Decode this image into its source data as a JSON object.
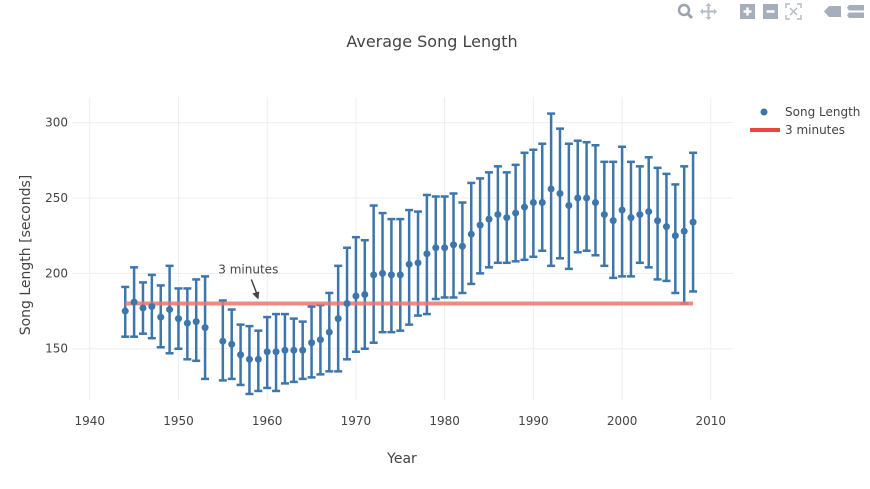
{
  "modebar": {
    "icons": [
      "zoom-icon",
      "pan-icon",
      "zoom-in-icon",
      "zoom-out-icon",
      "autoscale-icon",
      "hover-closest-icon",
      "hover-compare-icon"
    ]
  },
  "chart_data": {
    "type": "scatter",
    "title": "Average Song Length",
    "xlabel": "Year",
    "ylabel": "Song Length [seconds]",
    "xlim": [
      1938,
      2012.5
    ],
    "ylim": [
      116,
      317
    ],
    "xticks": [
      1940,
      1950,
      1960,
      1970,
      1980,
      1990,
      2000,
      2010
    ],
    "yticks": [
      150,
      200,
      250,
      300
    ],
    "grid": true,
    "legend_position": "top-right",
    "colors": {
      "points": "#3d76ab",
      "line": "#e8796f"
    },
    "series": [
      {
        "name": "Song Length",
        "mode": "markers",
        "error_bars": true,
        "x": [
          1944,
          1945,
          1946,
          1947,
          1948,
          1949,
          1950,
          1951,
          1952,
          1953,
          1955,
          1956,
          1957,
          1958,
          1959,
          1960,
          1961,
          1962,
          1963,
          1964,
          1965,
          1966,
          1967,
          1968,
          1969,
          1970,
          1971,
          1972,
          1973,
          1974,
          1975,
          1976,
          1977,
          1978,
          1979,
          1980,
          1981,
          1982,
          1983,
          1984,
          1985,
          1986,
          1987,
          1988,
          1989,
          1990,
          1991,
          1992,
          1993,
          1994,
          1995,
          1996,
          1997,
          1998,
          1999,
          2000,
          2001,
          2002,
          2003,
          2004,
          2005,
          2006,
          2007,
          2008
        ],
        "y": [
          175,
          181,
          177,
          178,
          171,
          176,
          170,
          167,
          168,
          164,
          155,
          153,
          146,
          143,
          143,
          148,
          148,
          149,
          149,
          149,
          154,
          156,
          161,
          170,
          180,
          185,
          186,
          199,
          200,
          199,
          199,
          206,
          207,
          213,
          217,
          217,
          219,
          218,
          226,
          232,
          236,
          239,
          237,
          240,
          244,
          247,
          247,
          256,
          253,
          245,
          250,
          250,
          247,
          239,
          235,
          242,
          237,
          239,
          241,
          235,
          231,
          225,
          228,
          234
        ],
        "low": [
          158,
          158,
          160,
          157,
          151,
          147,
          150,
          143,
          142,
          130,
          129,
          130,
          126,
          120,
          122,
          124,
          122,
          127,
          128,
          130,
          131,
          133,
          135,
          135,
          143,
          148,
          150,
          154,
          161,
          161,
          162,
          166,
          172,
          173,
          183,
          184,
          184,
          187,
          193,
          200,
          204,
          207,
          207,
          208,
          209,
          211,
          215,
          205,
          210,
          203,
          214,
          215,
          212,
          205,
          197,
          198,
          198,
          207,
          204,
          196,
          195,
          187,
          180,
          188
        ],
        "high": [
          191,
          204,
          194,
          199,
          192,
          205,
          190,
          190,
          196,
          198,
          182,
          176,
          166,
          165,
          162,
          171,
          173,
          173,
          170,
          168,
          178,
          179,
          187,
          205,
          217,
          224,
          222,
          245,
          240,
          236,
          236,
          242,
          241,
          252,
          251,
          251,
          253,
          247,
          260,
          263,
          267,
          271,
          267,
          272,
          280,
          282,
          286,
          306,
          296,
          286,
          288,
          287,
          285,
          274,
          274,
          284,
          274,
          271,
          277,
          270,
          266,
          259,
          271,
          280
        ]
      },
      {
        "name": "3 minutes",
        "mode": "line",
        "x": [
          1944,
          2008
        ],
        "y": [
          180,
          180
        ]
      }
    ],
    "annotations": [
      {
        "text": "3 minutes",
        "x": 1959,
        "y": 180,
        "arrow": true
      }
    ]
  }
}
